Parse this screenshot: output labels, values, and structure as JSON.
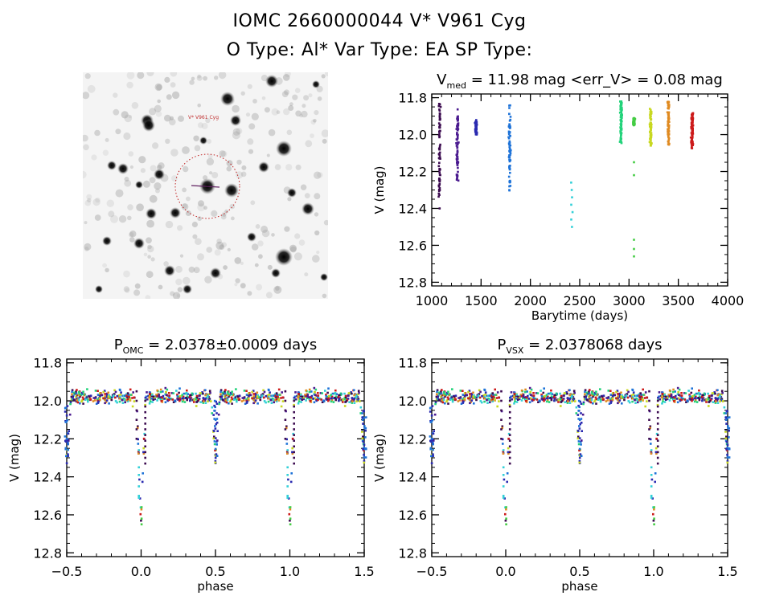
{
  "header": {
    "title_line1": "IOMC 2660000044    V* V961 Cyg",
    "title_line2": "O Type: Al*  Var Type: EA  SP Type:"
  },
  "finder_chart": {
    "label_target": "V* V961 Cyg",
    "description": "Inverted greyscale star field with red dashed circle around target"
  },
  "chart_data": [
    {
      "id": "timeseries",
      "type": "scatter",
      "title": "V_med = 11.98 mag <err_V> = 0.08 mag",
      "title_main": "V",
      "title_sub": "med",
      "title_rest": " = 11.98 mag <err_V> = 0.08 mag",
      "xlabel": "Barytime (days)",
      "ylabel": "V (mag)",
      "xlim": [
        1000,
        4000
      ],
      "ylim": [
        12.82,
        11.78
      ],
      "xticks": [
        1000,
        1500,
        2000,
        2500,
        3000,
        3500,
        4000
      ],
      "xtick_labels": [
        "1000",
        "1500",
        "2000",
        "2500",
        "3000",
        "3500",
        "4000"
      ],
      "yticks": [
        11.8,
        12.0,
        12.2,
        12.4,
        12.6,
        12.8
      ],
      "ytick_labels": [
        "11.8",
        "12.0",
        "12.2",
        "12.4",
        "12.6",
        "12.8"
      ],
      "groups": [
        {
          "x": 1080,
          "ymin": 11.83,
          "ymax": 12.35,
          "outliers": [
            12.4
          ],
          "color": "#3b0a4f"
        },
        {
          "x": 1260,
          "ymin": 11.86,
          "ymax": 12.25,
          "outliers": [],
          "color": "#4a1a8f"
        },
        {
          "x": 1450,
          "ymin": 11.92,
          "ymax": 12.0,
          "outliers": [],
          "color": "#2a2ab0"
        },
        {
          "x": 1790,
          "ymin": 11.84,
          "ymax": 12.31,
          "outliers": [],
          "color": "#1e73d8"
        },
        {
          "x": 2420,
          "ymin": 12.26,
          "ymax": 12.5,
          "outliers": [],
          "color": "#33d0d8",
          "sparse": true
        },
        {
          "x": 2920,
          "ymin": 11.82,
          "ymax": 12.05,
          "outliers": [],
          "color": "#22d37a"
        },
        {
          "x": 3050,
          "ymin": 11.91,
          "ymax": 11.95,
          "outliers": [
            12.15,
            12.22,
            12.57,
            12.62,
            12.66
          ],
          "color": "#44cc44"
        },
        {
          "x": 3220,
          "ymin": 11.86,
          "ymax": 12.06,
          "outliers": [],
          "color": "#c8d820"
        },
        {
          "x": 3400,
          "ymin": 11.81,
          "ymax": 12.06,
          "outliers": [],
          "color": "#e08a20"
        },
        {
          "x": 3640,
          "ymin": 11.88,
          "ymax": 12.08,
          "outliers": [],
          "color": "#cc1a1a"
        }
      ]
    },
    {
      "id": "phase_omc",
      "type": "scatter",
      "title_main": "P",
      "title_sub": "OMC",
      "title_rest": " = 2.0378±0.0009 days",
      "xlabel": "phase",
      "ylabel": "V (mag)",
      "xlim": [
        -0.5,
        1.5
      ],
      "ylim": [
        12.82,
        11.78
      ],
      "xticks": [
        -0.5,
        0.0,
        0.5,
        1.0,
        1.5
      ],
      "xtick_labels": [
        "-0.5",
        "0.0",
        "0.5",
        "1.0",
        "1.5"
      ],
      "yticks": [
        11.8,
        12.0,
        12.2,
        12.4,
        12.6,
        12.8
      ],
      "ytick_labels": [
        "11.8",
        "12.0",
        "12.2",
        "12.4",
        "12.6",
        "12.8"
      ],
      "primary_eclipse": {
        "phase": 0.0,
        "depth_mag": 12.65
      },
      "secondary_eclipse": {
        "phase": 0.5,
        "depth_mag": 12.31
      },
      "baseline_mag": 11.98,
      "palette": [
        "#3b0a4f",
        "#4a1a8f",
        "#2a2ab0",
        "#1e73d8",
        "#33d0d8",
        "#22d37a",
        "#c8d820",
        "#e08a20",
        "#cc1a1a"
      ]
    },
    {
      "id": "phase_vsx",
      "type": "scatter",
      "title_main": "P",
      "title_sub": "VSX",
      "title_rest": " = 2.0378068 days",
      "xlabel": "phase",
      "ylabel": "V (mag)",
      "xlim": [
        -0.5,
        1.5
      ],
      "ylim": [
        12.82,
        11.78
      ],
      "xticks": [
        -0.5,
        0.0,
        0.5,
        1.0,
        1.5
      ],
      "xtick_labels": [
        "-0.5",
        "0.0",
        "0.5",
        "1.0",
        "1.5"
      ],
      "yticks": [
        11.8,
        12.0,
        12.2,
        12.4,
        12.6,
        12.8
      ],
      "ytick_labels": [
        "11.8",
        "12.0",
        "12.2",
        "12.4",
        "12.6",
        "12.8"
      ],
      "primary_eclipse": {
        "phase": 0.0,
        "depth_mag": 12.65
      },
      "secondary_eclipse": {
        "phase": 0.5,
        "depth_mag": 12.31
      },
      "baseline_mag": 11.98,
      "palette": [
        "#3b0a4f",
        "#4a1a8f",
        "#2a2ab0",
        "#1e73d8",
        "#33d0d8",
        "#22d37a",
        "#c8d820",
        "#e08a20",
        "#cc1a1a"
      ]
    }
  ]
}
